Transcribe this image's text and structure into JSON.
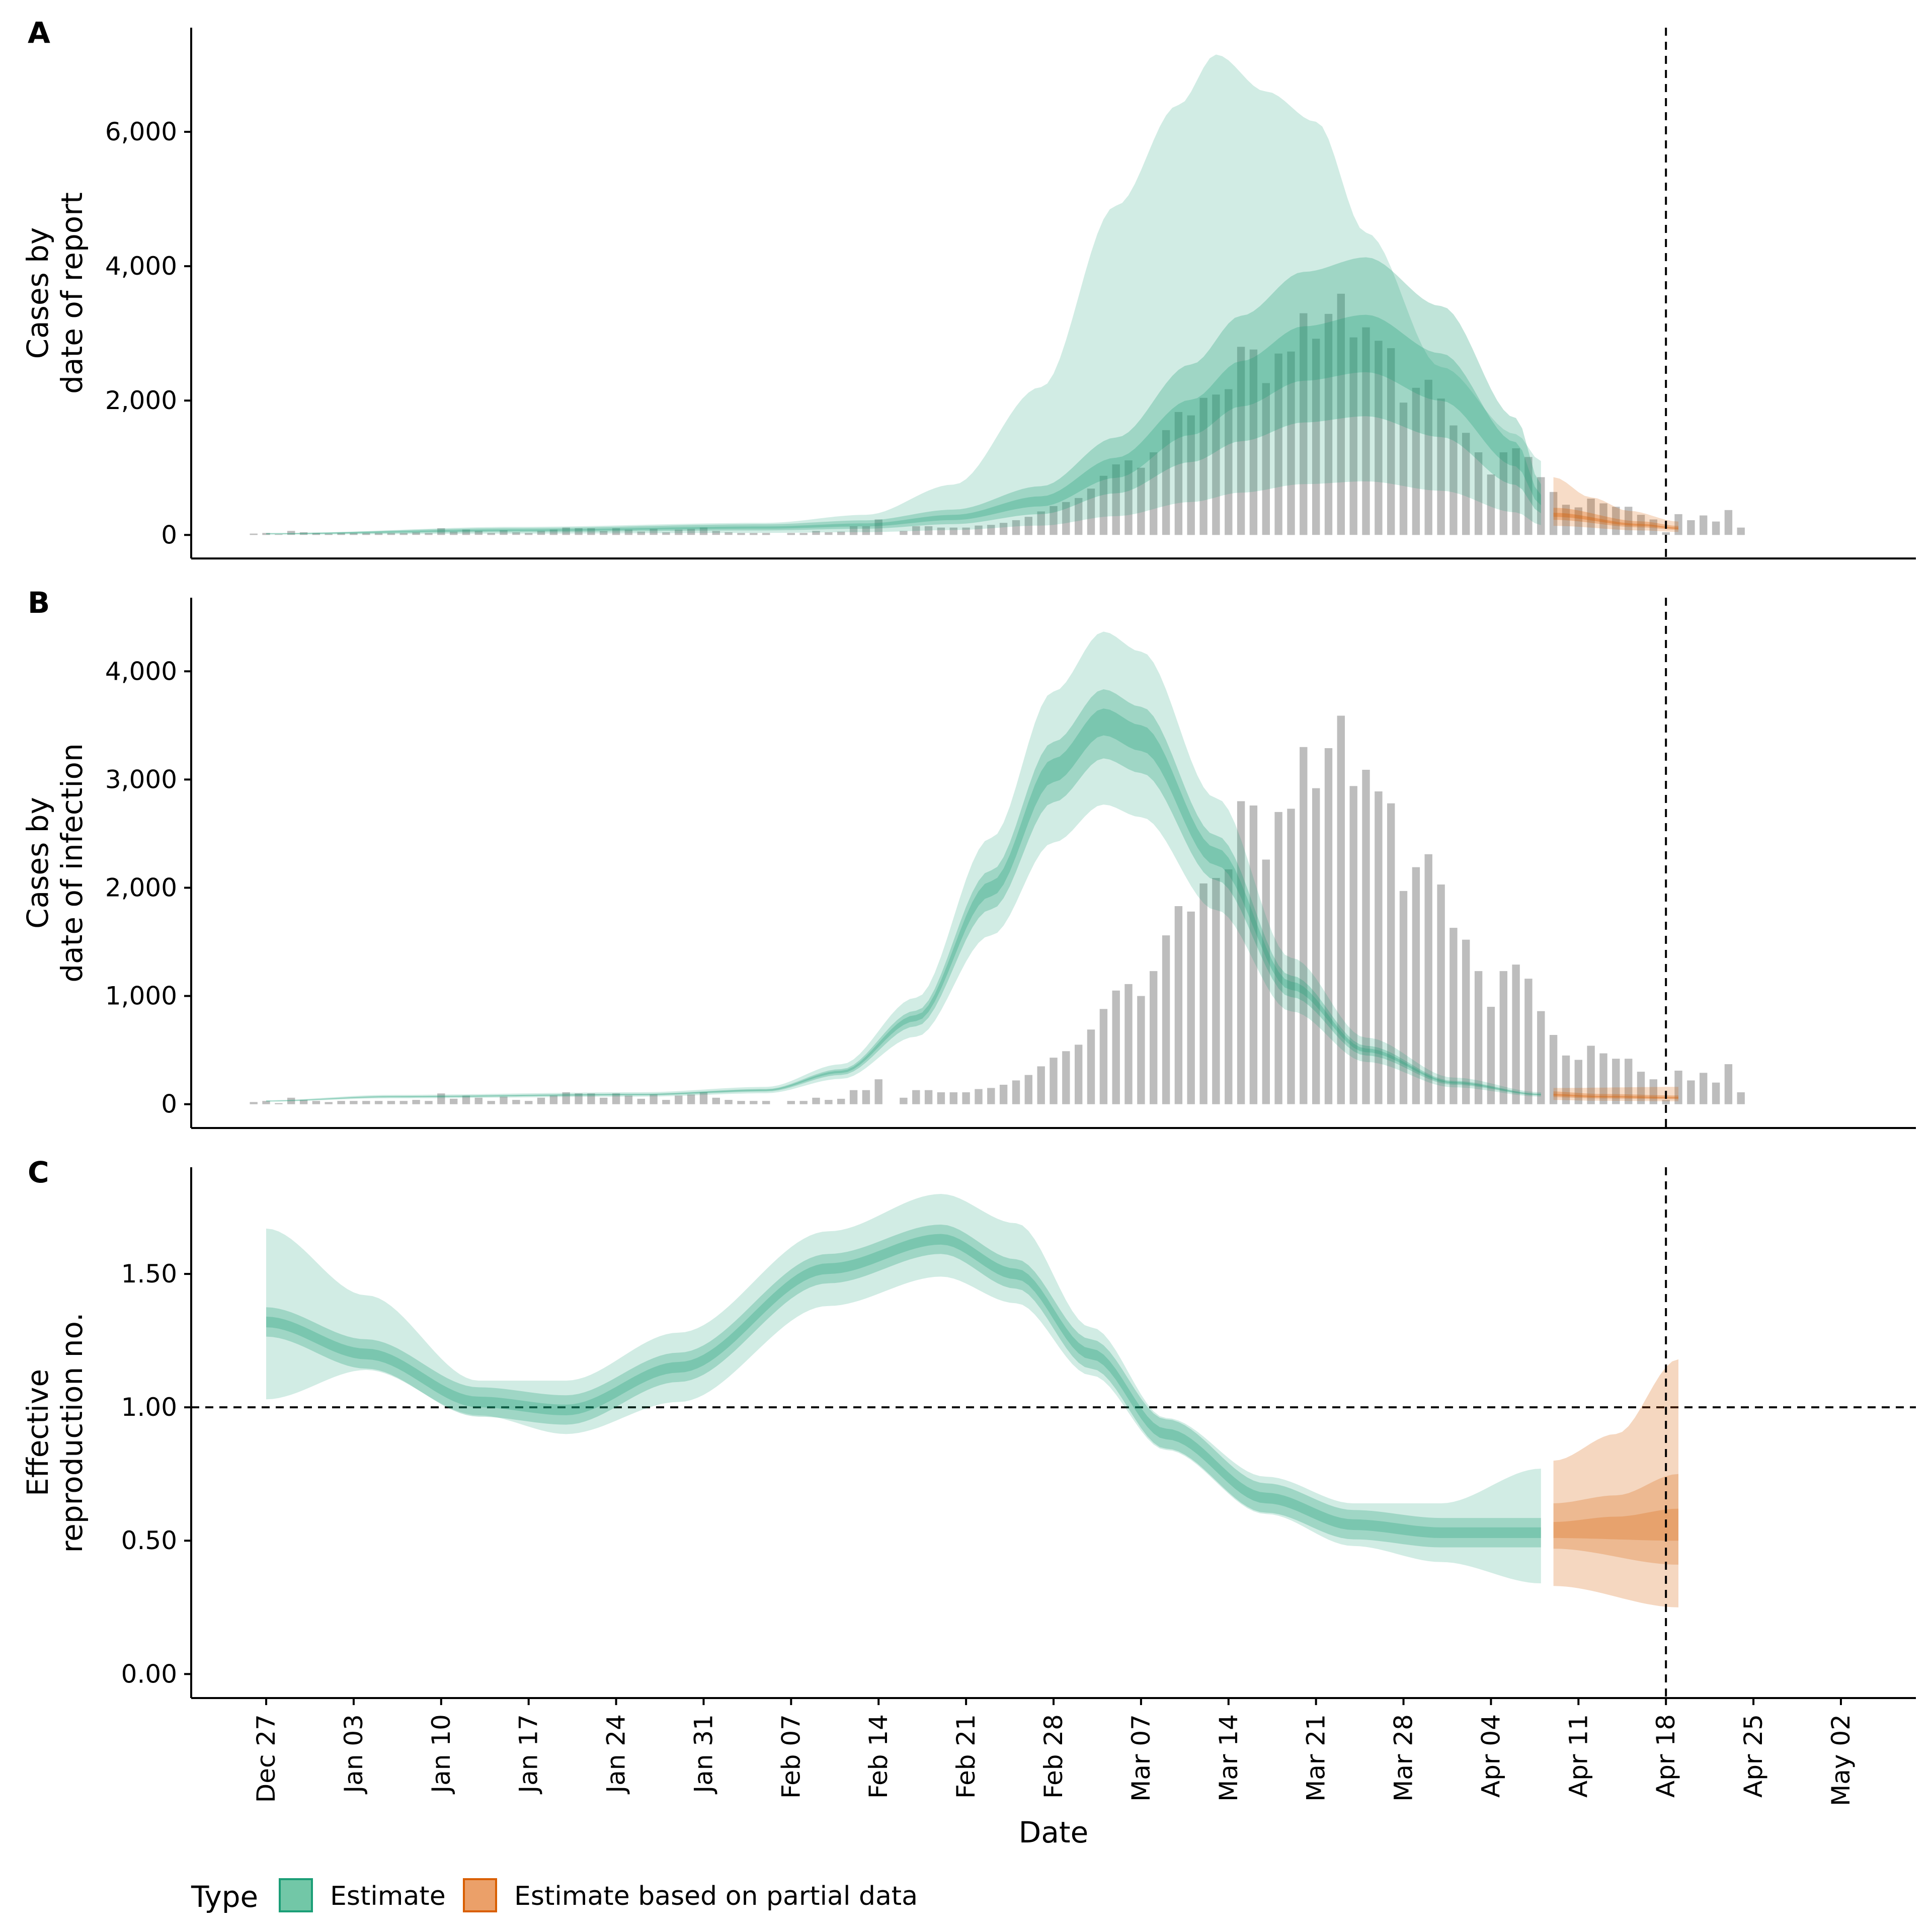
{
  "chart_data": {
    "type": "area",
    "x_axis": {
      "title": "Date",
      "ticks": [
        "Dec 27",
        "Jan 03",
        "Jan 10",
        "Jan 17",
        "Jan 24",
        "Jan 31",
        "Feb 07",
        "Feb 14",
        "Feb 21",
        "Feb 28",
        "Mar 07",
        "Mar 14",
        "Mar 21",
        "Mar 28",
        "Apr 04",
        "Apr 11",
        "Apr 18",
        "Apr 25",
        "May 02"
      ],
      "range_days_from_dec27": [
        -6,
        132
      ]
    },
    "forecast_cutoff": "Apr 18",
    "observed_cases": [
      0,
      0,
      0,
      0,
      0,
      20,
      30,
      10,
      60,
      40,
      30,
      20,
      30,
      30,
      30,
      30,
      30,
      30,
      40,
      30,
      100,
      50,
      80,
      60,
      30,
      70,
      40,
      30,
      60,
      80,
      110,
      100,
      100,
      60,
      100,
      80,
      50,
      90,
      40,
      80,
      90,
      110,
      60,
      40,
      30,
      30,
      30,
      0,
      30,
      30,
      60,
      40,
      50,
      130,
      130,
      230,
      0,
      60,
      130,
      130,
      110,
      110,
      110,
      140,
      150,
      180,
      220,
      270,
      350,
      430,
      490,
      550,
      690,
      880,
      1050,
      1110,
      1000,
      1230,
      1560,
      1830,
      1780,
      2040,
      2090,
      2170,
      2800,
      2760,
      2260,
      2700,
      2730,
      3300,
      2920,
      3290,
      3590,
      2940,
      3090,
      2890,
      2780,
      1970,
      2190,
      2310,
      2030,
      1630,
      1520,
      1230,
      900,
      1230,
      1290,
      1160,
      860,
      640,
      450,
      410,
      540,
      470,
      420,
      420,
      300,
      230,
      40,
      310,
      220,
      290,
      200,
      370,
      110
    ],
    "panels": [
      {
        "label": "A",
        "ylabel_lines": [
          "Cases by",
          "date of report"
        ],
        "y_ticks": [
          "0",
          "2,000",
          "4,000",
          "6,000"
        ],
        "ylim": [
          -350,
          7550
        ],
        "estimate_end_day": 102,
        "estimate_median_knots": [
          [
            0,
            20
          ],
          [
            20,
            70
          ],
          [
            40,
            110
          ],
          [
            48,
            150
          ],
          [
            55,
            260
          ],
          [
            62,
            500
          ],
          [
            68,
            1000
          ],
          [
            74,
            1750
          ],
          [
            78,
            2250
          ],
          [
            83,
            2700
          ],
          [
            88,
            2850
          ],
          [
            94,
            2350
          ],
          [
            100,
            1200
          ],
          [
            102,
            520
          ],
          [
            103,
            300
          ],
          [
            110,
            150
          ],
          [
            113,
            100
          ]
        ],
        "estimate_bands": [
          {
            "level": "90%",
            "lower_ratio": 0.28,
            "upper_knots": [
              [
                0,
                20
              ],
              [
                20,
                120
              ],
              [
                40,
                180
              ],
              [
                48,
                300
              ],
              [
                55,
                750
              ],
              [
                62,
                2200
              ],
              [
                68,
                4900
              ],
              [
                73,
                6400
              ],
              [
                76,
                7150
              ],
              [
                80,
                6600
              ],
              [
                84,
                6150
              ],
              [
                88,
                4500
              ],
              [
                94,
                2500
              ],
              [
                100,
                1500
              ],
              [
                102,
                1100
              ]
            ]
          },
          {
            "level": "50%",
            "lower_ratio": 0.62,
            "upper_ratio": 1.45
          },
          {
            "level": "20%",
            "lower_ratio": 0.85,
            "upper_ratio": 1.15
          }
        ],
        "partial_band_upper_knots": [
          [
            103,
            860
          ],
          [
            106,
            560
          ],
          [
            109,
            360
          ],
          [
            113,
            200
          ]
        ]
      },
      {
        "label": "B",
        "ylabel_lines": [
          "Cases by",
          "date of infection"
        ],
        "y_ticks": [
          "0",
          "1,000",
          "2,000",
          "3,000",
          "4,000"
        ],
        "ylim": [
          -220,
          4680
        ],
        "estimate_end_day": 102,
        "estimate_median_knots": [
          [
            0,
            30
          ],
          [
            10,
            70
          ],
          [
            30,
            90
          ],
          [
            40,
            130
          ],
          [
            46,
            300
          ],
          [
            52,
            800
          ],
          [
            58,
            2000
          ],
          [
            63,
            3100
          ],
          [
            67,
            3550
          ],
          [
            70,
            3400
          ],
          [
            76,
            2300
          ],
          [
            82,
            1100
          ],
          [
            88,
            500
          ],
          [
            95,
            200
          ],
          [
            102,
            90
          ],
          [
            107,
            70
          ],
          [
            113,
            60
          ]
        ],
        "estimate_bands": [
          {
            "level": "90%",
            "lower_ratio": 0.78,
            "upper_ratio": 1.23
          },
          {
            "level": "50%",
            "lower_ratio": 0.9,
            "upper_ratio": 1.08
          },
          {
            "level": "20%",
            "lower_ratio": 0.96,
            "upper_ratio": 1.03
          }
        ],
        "partial_band_upper_knots": [
          [
            103,
            150
          ],
          [
            113,
            160
          ]
        ]
      },
      {
        "label": "C",
        "ylabel_lines": [
          "Effective",
          "reproduction no."
        ],
        "y_ticks": [
          "0.00",
          "0.50",
          "1.00",
          "1.50"
        ],
        "ylim": [
          -0.09,
          1.9
        ],
        "reference_line": 1.0,
        "estimate_end_day": 102,
        "estimate_median_knots": [
          [
            0,
            1.32
          ],
          [
            8,
            1.2
          ],
          [
            17,
            1.02
          ],
          [
            24,
            0.99
          ],
          [
            33,
            1.15
          ],
          [
            45,
            1.52
          ],
          [
            54,
            1.63
          ],
          [
            60,
            1.5
          ],
          [
            66,
            1.2
          ],
          [
            72,
            0.9
          ],
          [
            80,
            0.66
          ],
          [
            87,
            0.56
          ],
          [
            94,
            0.53
          ],
          [
            102,
            0.53
          ],
          [
            113,
            0.55
          ]
        ],
        "estimate_bands": [
          {
            "level": "90%",
            "lower_knots": [
              [
                0,
                1.03
              ],
              [
                8,
                1.14
              ],
              [
                17,
                0.97
              ],
              [
                24,
                0.9
              ],
              [
                33,
                1.02
              ],
              [
                45,
                1.38
              ],
              [
                54,
                1.49
              ],
              [
                60,
                1.39
              ],
              [
                66,
                1.12
              ],
              [
                72,
                0.84
              ],
              [
                80,
                0.6
              ],
              [
                87,
                0.48
              ],
              [
                94,
                0.42
              ],
              [
                102,
                0.34
              ]
            ],
            "upper_knots": [
              [
                0,
                1.67
              ],
              [
                8,
                1.42
              ],
              [
                17,
                1.1
              ],
              [
                24,
                1.1
              ],
              [
                33,
                1.28
              ],
              [
                45,
                1.66
              ],
              [
                54,
                1.8
              ],
              [
                60,
                1.69
              ],
              [
                66,
                1.3
              ],
              [
                72,
                0.96
              ],
              [
                80,
                0.74
              ],
              [
                87,
                0.64
              ],
              [
                94,
                0.64
              ],
              [
                102,
                0.77
              ]
            ]
          },
          {
            "level": "50%",
            "offset": 0.055
          },
          {
            "level": "20%",
            "offset": 0.02
          }
        ],
        "partial_band_knots": [
          {
            "level": "90%",
            "lower": [
              [
                103,
                0.33
              ],
              [
                113,
                0.25
              ]
            ],
            "upper": [
              [
                103,
                0.8
              ],
              [
                108,
                0.9
              ],
              [
                113,
                1.18
              ]
            ]
          },
          {
            "level": "50%",
            "lower": [
              [
                103,
                0.47
              ],
              [
                113,
                0.41
              ]
            ],
            "upper": [
              [
                103,
                0.64
              ],
              [
                108,
                0.67
              ],
              [
                113,
                0.75
              ]
            ]
          },
          {
            "level": "20%",
            "lower": [
              [
                103,
                0.51
              ],
              [
                113,
                0.5
              ]
            ],
            "upper": [
              [
                103,
                0.57
              ],
              [
                108,
                0.59
              ],
              [
                113,
                0.62
              ]
            ]
          }
        ]
      }
    ],
    "legend": {
      "title": "Type",
      "items": [
        {
          "label": "Estimate",
          "fill": "#72c7a7",
          "stroke": "#1b9e77"
        },
        {
          "label": "Estimate based on partial data",
          "fill": "#eba069",
          "stroke": "#d95f02"
        }
      ]
    },
    "colors": {
      "estimate": "#1b9e77",
      "partial": "#d95f02",
      "bars": "#999999"
    }
  }
}
